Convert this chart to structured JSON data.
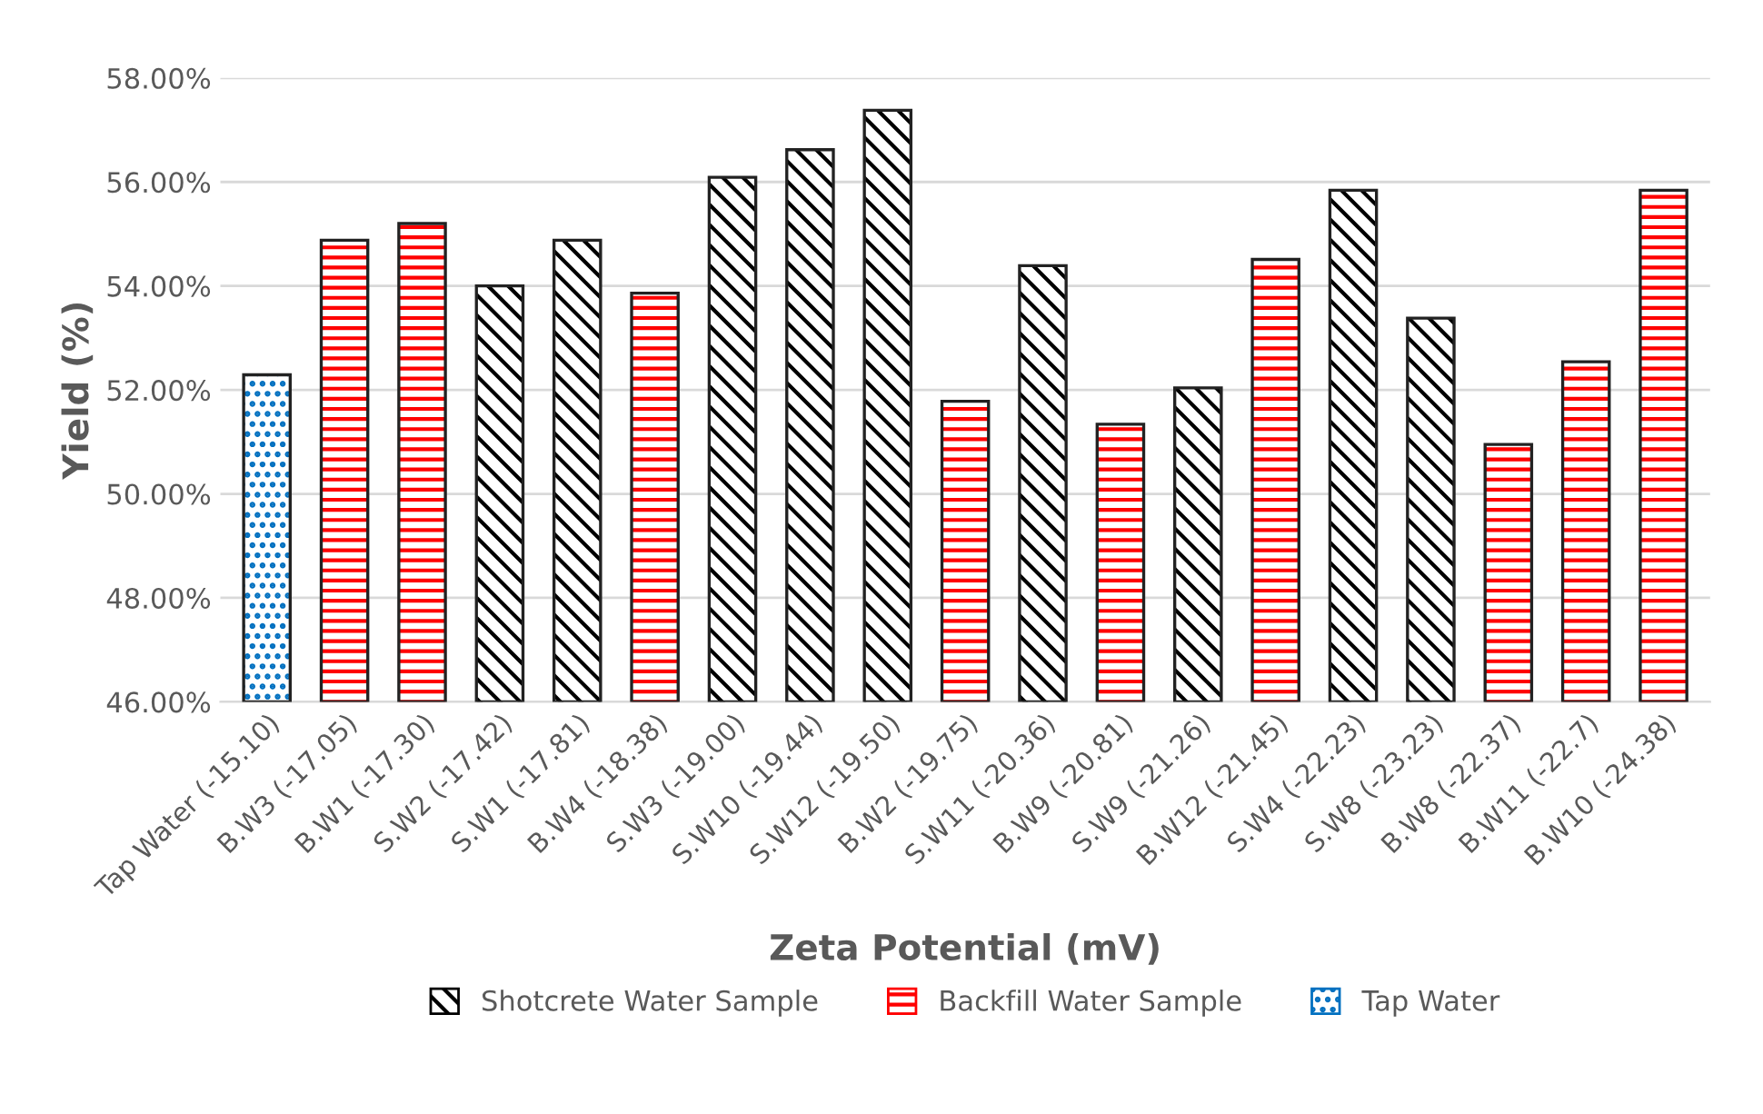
{
  "chart_data": {
    "type": "bar",
    "xlabel": "Zeta Potential (mV)",
    "ylabel": "Yield (%)",
    "categories": [
      "Tap Water (-15.10)",
      "B.W3 (-17.05)",
      "B.W1 (-17.30)",
      "S.W2 (-17.42)",
      "S.W1 (-17.81)",
      "B.W4 (-18.38)",
      "S.W3 (-19.00)",
      "S.W10 (-19.44)",
      "S.W12 (-19.50)",
      "B.W2 (-19.75)",
      "S.W11 (-20.36)",
      "B.W9 (-20.81)",
      "S.W9 (-21.26)",
      "B.W12 (-21.45)",
      "S.W4 (-22.23)",
      "S.W8 (-23.23)",
      "B.W8 (-22.37)",
      "B.W11 (-22.7)",
      "B.W10 (-24.38)"
    ],
    "series": [
      {
        "name": "Shotcrete Water Sample",
        "color": "#000000",
        "values": [
          null,
          null,
          null,
          54.0,
          54.88,
          null,
          56.09,
          56.62,
          57.38,
          null,
          54.39,
          null,
          52.04,
          null,
          55.84,
          53.38,
          null,
          null,
          null
        ]
      },
      {
        "name": "Backfill Water Sample",
        "color": "#ff0000",
        "values": [
          null,
          54.88,
          55.2,
          null,
          null,
          53.86,
          null,
          null,
          null,
          51.78,
          null,
          51.34,
          null,
          54.51,
          null,
          null,
          50.95,
          52.54,
          55.84
        ]
      },
      {
        "name": "Tap Water",
        "color": "#0070c0",
        "values": [
          52.29,
          null,
          null,
          null,
          null,
          null,
          null,
          null,
          null,
          null,
          null,
          null,
          null,
          null,
          null,
          null,
          null,
          null,
          null
        ]
      }
    ],
    "ylim": [
      46,
      58
    ],
    "yticks": [
      {
        "value": 46,
        "label": "46.00%"
      },
      {
        "value": 48,
        "label": "48.00%"
      },
      {
        "value": 50,
        "label": "50.00%"
      },
      {
        "value": 52,
        "label": "52.00%"
      },
      {
        "value": 54,
        "label": "54.00%"
      },
      {
        "value": 56,
        "label": "56.00%"
      },
      {
        "value": 58,
        "label": "58.00%"
      }
    ],
    "grid": "y",
    "legend": "bottom"
  }
}
